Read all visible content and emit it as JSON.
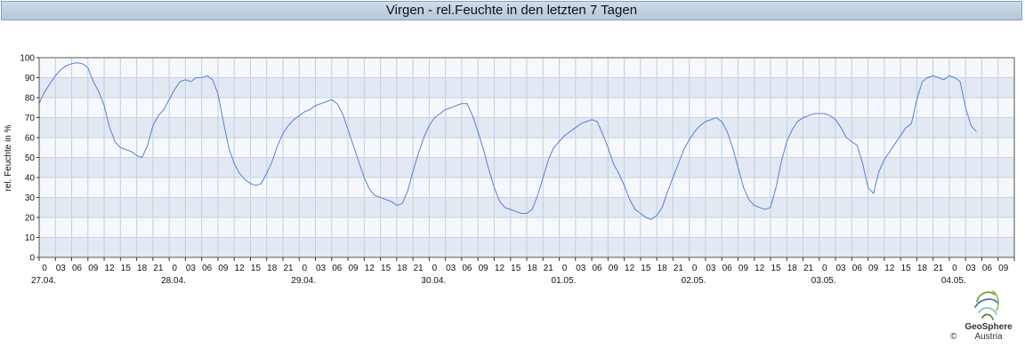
{
  "chart_data": {
    "type": "line",
    "title": "Virgen - rel.Feuchte in den letzten 7 Tagen",
    "ylabel": "rel. Feuchte in %",
    "xlabel": "",
    "ylim": [
      0,
      100
    ],
    "yticks": [
      0,
      10,
      20,
      30,
      40,
      50,
      60,
      70,
      80,
      90,
      100
    ],
    "xlim_hours": [
      0,
      180
    ],
    "hour_tick_step": 3,
    "day_labels": [
      "27.04.",
      "28.04.",
      "29.04.",
      "30.04.",
      "01.05.",
      "02.05.",
      "03.05.",
      "04.05."
    ],
    "grid": true,
    "line_color": "#5b7fd4",
    "band_colors": [
      "#e3e9f2",
      "#f6f8fb"
    ],
    "series": [
      {
        "name": "",
        "points": [
          [
            0,
            77
          ],
          [
            1,
            83
          ],
          [
            2,
            87
          ],
          [
            3,
            91
          ],
          [
            4,
            94
          ],
          [
            5,
            96
          ],
          [
            6,
            97
          ],
          [
            7,
            97.5
          ],
          [
            8,
            97
          ],
          [
            9,
            95
          ],
          [
            10,
            88
          ],
          [
            11,
            83
          ],
          [
            12,
            76
          ],
          [
            13,
            65
          ],
          [
            14,
            58
          ],
          [
            15,
            55
          ],
          [
            16,
            54
          ],
          [
            17,
            53
          ],
          [
            18,
            51
          ],
          [
            19,
            50
          ],
          [
            20,
            56
          ],
          [
            21,
            66
          ],
          [
            22,
            71
          ],
          [
            23,
            74
          ],
          [
            24,
            79
          ],
          [
            25,
            84
          ],
          [
            26,
            88
          ],
          [
            27,
            89
          ],
          [
            28,
            88
          ],
          [
            29,
            90
          ],
          [
            30,
            90
          ],
          [
            31,
            91
          ],
          [
            32,
            89
          ],
          [
            33,
            82
          ],
          [
            34,
            68
          ],
          [
            35,
            55
          ],
          [
            36,
            47
          ],
          [
            37,
            42
          ],
          [
            38,
            39
          ],
          [
            39,
            37
          ],
          [
            40,
            36
          ],
          [
            41,
            37
          ],
          [
            42,
            42
          ],
          [
            43,
            48
          ],
          [
            44,
            56
          ],
          [
            45,
            62
          ],
          [
            46,
            66
          ],
          [
            47,
            69
          ],
          [
            48,
            71
          ],
          [
            49,
            73
          ],
          [
            50,
            74
          ],
          [
            51,
            76
          ],
          [
            52,
            77
          ],
          [
            53,
            78
          ],
          [
            54,
            79
          ],
          [
            55,
            77
          ],
          [
            56,
            72
          ],
          [
            57,
            64
          ],
          [
            58,
            56
          ],
          [
            59,
            48
          ],
          [
            60,
            40
          ],
          [
            61,
            34
          ],
          [
            62,
            31
          ],
          [
            63,
            30
          ],
          [
            64,
            29
          ],
          [
            65,
            28
          ],
          [
            66,
            26
          ],
          [
            67,
            27
          ],
          [
            68,
            33
          ],
          [
            69,
            43
          ],
          [
            70,
            52
          ],
          [
            71,
            60
          ],
          [
            72,
            66
          ],
          [
            73,
            70
          ],
          [
            74,
            72
          ],
          [
            75,
            74
          ],
          [
            76,
            75
          ],
          [
            77,
            76
          ],
          [
            78,
            77
          ],
          [
            79,
            77
          ],
          [
            80,
            71
          ],
          [
            81,
            63
          ],
          [
            82,
            54
          ],
          [
            83,
            44
          ],
          [
            84,
            35
          ],
          [
            85,
            28
          ],
          [
            86,
            25
          ],
          [
            87,
            24
          ],
          [
            88,
            23
          ],
          [
            89,
            22
          ],
          [
            90,
            22
          ],
          [
            91,
            24
          ],
          [
            92,
            31
          ],
          [
            93,
            40
          ],
          [
            94,
            49
          ],
          [
            95,
            55
          ],
          [
            96,
            58
          ],
          [
            97,
            61
          ],
          [
            98,
            63
          ],
          [
            99,
            65
          ],
          [
            100,
            67
          ],
          [
            101,
            68
          ],
          [
            102,
            69
          ],
          [
            103,
            68
          ],
          [
            104,
            62
          ],
          [
            105,
            55
          ],
          [
            106,
            47
          ],
          [
            107,
            42
          ],
          [
            108,
            36
          ],
          [
            109,
            29
          ],
          [
            110,
            24
          ],
          [
            111,
            22
          ],
          [
            112,
            20
          ],
          [
            113,
            19
          ],
          [
            114,
            21
          ],
          [
            115,
            25
          ],
          [
            116,
            33
          ],
          [
            117,
            40
          ],
          [
            118,
            47
          ],
          [
            119,
            54
          ],
          [
            120,
            59
          ],
          [
            121,
            63
          ],
          [
            122,
            66
          ],
          [
            123,
            68
          ],
          [
            124,
            69
          ],
          [
            125,
            70
          ],
          [
            126,
            68
          ],
          [
            127,
            63
          ],
          [
            128,
            55
          ],
          [
            129,
            45
          ],
          [
            130,
            35
          ],
          [
            131,
            29
          ],
          [
            132,
            26
          ],
          [
            133,
            25
          ],
          [
            134,
            24
          ],
          [
            135,
            25
          ],
          [
            136,
            35
          ],
          [
            137,
            48
          ],
          [
            138,
            58
          ],
          [
            139,
            64
          ],
          [
            140,
            68
          ],
          [
            141,
            70
          ],
          [
            142,
            71
          ],
          [
            143,
            72
          ],
          [
            144,
            72
          ],
          [
            145,
            72
          ],
          [
            146,
            71
          ],
          [
            147,
            69
          ],
          [
            148,
            65
          ],
          [
            149,
            60
          ],
          [
            150,
            58
          ],
          [
            151,
            56
          ],
          [
            152,
            47
          ],
          [
            153,
            35
          ],
          [
            154,
            32
          ],
          [
            155,
            43
          ],
          [
            156,
            49
          ],
          [
            157,
            53
          ],
          [
            158,
            57
          ],
          [
            159,
            61
          ],
          [
            160,
            65
          ],
          [
            161,
            67
          ],
          [
            162,
            79
          ],
          [
            163,
            88
          ],
          [
            164,
            90
          ],
          [
            165,
            91
          ],
          [
            166,
            90
          ],
          [
            167,
            89
          ],
          [
            168,
            91
          ],
          [
            169,
            90
          ],
          [
            170,
            88
          ],
          [
            171,
            75
          ],
          [
            172,
            66
          ],
          [
            173,
            63
          ]
        ]
      }
    ]
  },
  "brand": {
    "name": "GeoSphere",
    "sub": "Austria",
    "copyright": "©"
  }
}
